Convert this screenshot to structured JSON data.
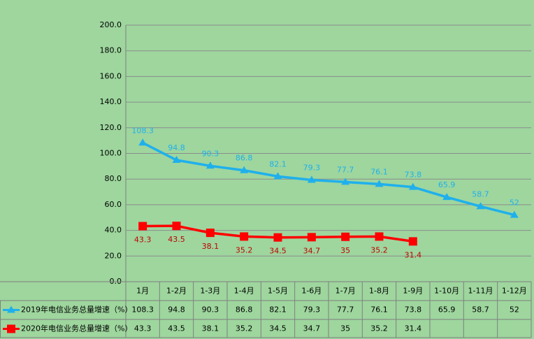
{
  "chart_data": {
    "type": "line",
    "categories": [
      "1月",
      "1-2月",
      "1-3月",
      "1-4月",
      "1-5月",
      "1-6月",
      "1-7月",
      "1-8月",
      "1-9月",
      "1-10月",
      "1-11月",
      "1-12月"
    ],
    "series": [
      {
        "name": "2019年电信业务总量增速（%）",
        "color": "#1fb0ec",
        "label_color": "#1fb0ec",
        "marker": "triangle",
        "values": [
          108.3,
          94.8,
          90.3,
          86.8,
          82.1,
          79.3,
          77.7,
          76.1,
          73.8,
          65.9,
          58.7,
          52
        ]
      },
      {
        "name": "2020年电信业务总量增速（%）",
        "color": "#ff0000",
        "label_color": "#c00000",
        "marker": "square",
        "values": [
          43.3,
          43.5,
          38.1,
          35.2,
          34.5,
          34.7,
          35,
          35.2,
          31.4,
          null,
          null,
          null
        ]
      }
    ],
    "ylim": [
      0,
      200
    ],
    "yticks": [
      {
        "value": 0,
        "label": "0.0"
      },
      {
        "value": 20,
        "label": "20.0"
      },
      {
        "value": 40,
        "label": "40.0"
      },
      {
        "value": 60,
        "label": "60.0"
      },
      {
        "value": 80,
        "label": "80.0"
      },
      {
        "value": 100,
        "label": "100.0"
      },
      {
        "value": 120,
        "label": "120.0"
      },
      {
        "value": 140,
        "label": "140.0"
      },
      {
        "value": 160,
        "label": "160.0"
      },
      {
        "value": 180,
        "label": "180.0"
      },
      {
        "value": 200,
        "label": "200.0"
      }
    ],
    "grid": true
  }
}
